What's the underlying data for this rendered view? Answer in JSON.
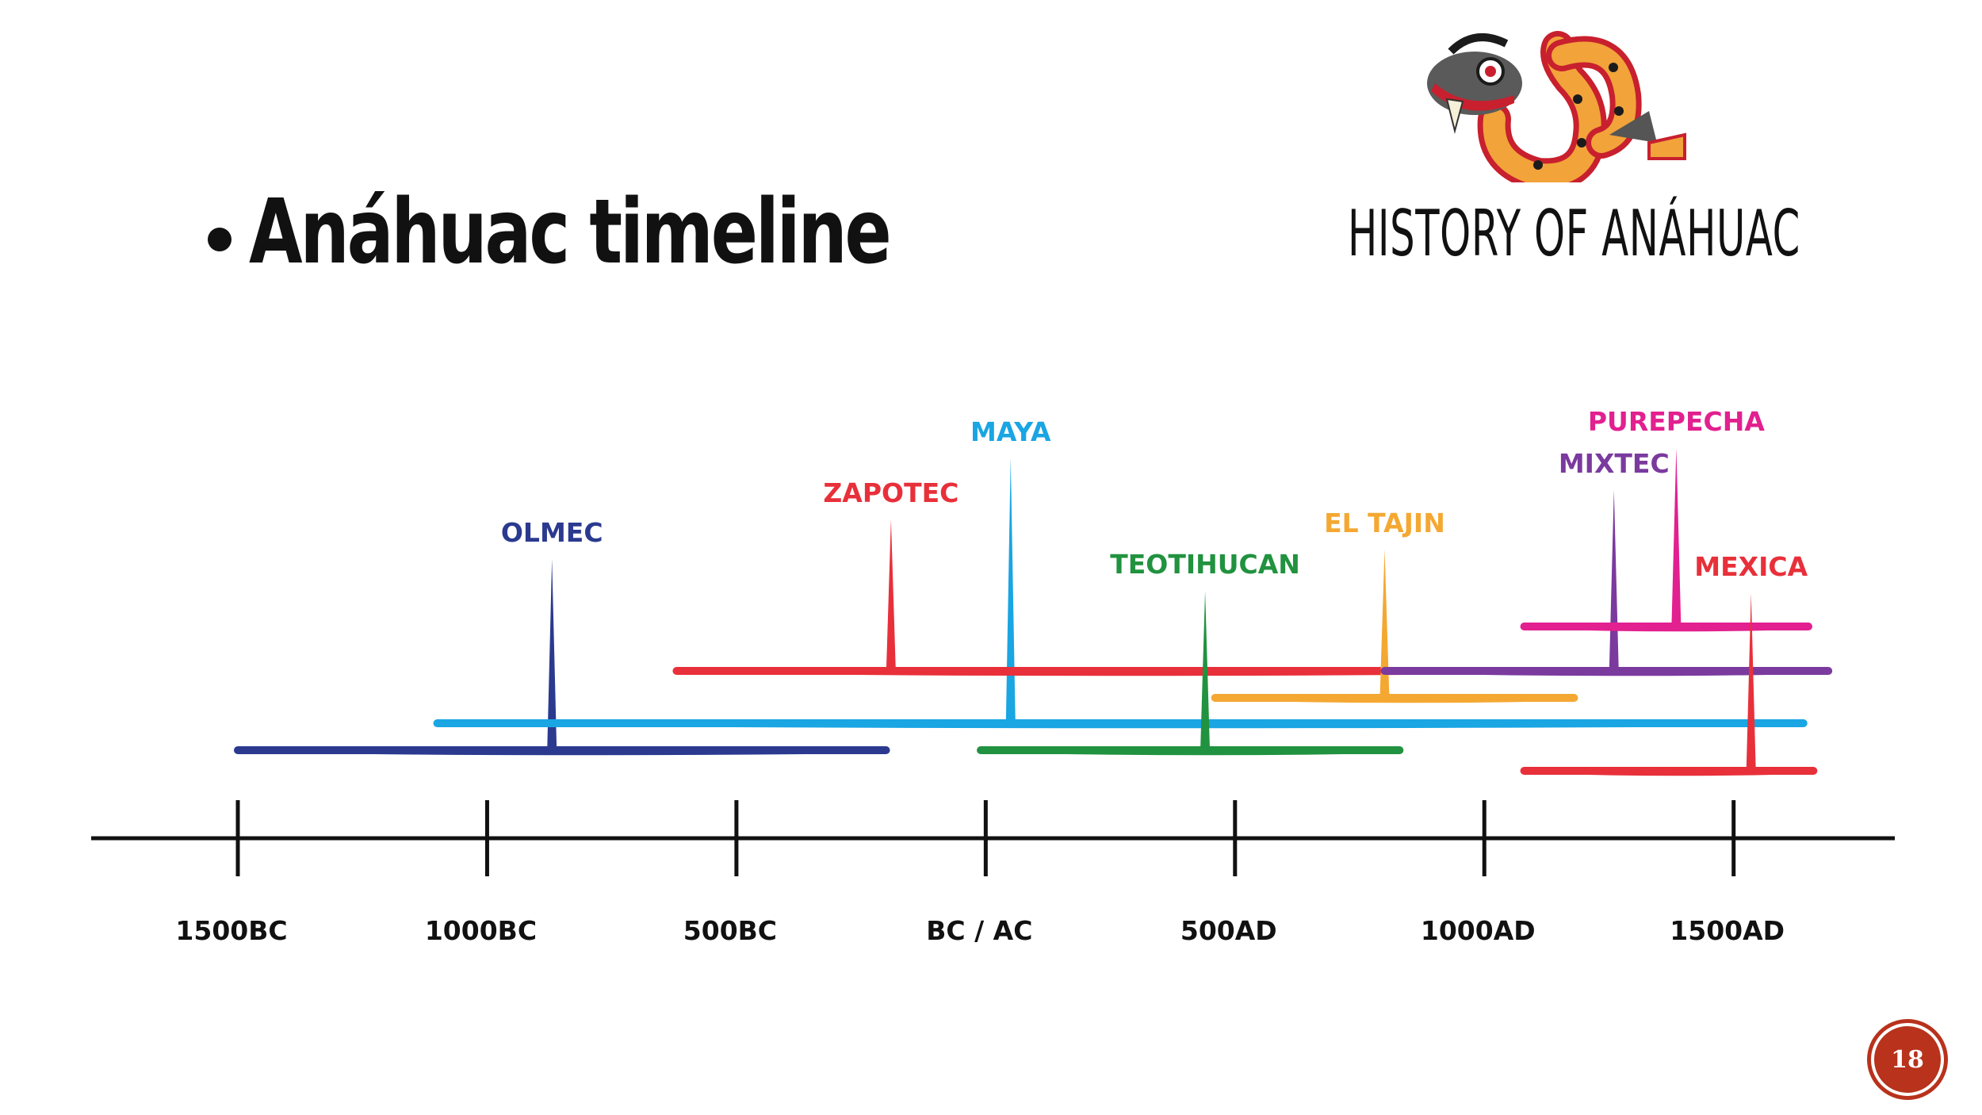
{
  "slide": {
    "title": "Anáhuac timeline",
    "brand_text": "HISTORY OF ANÁHUAC",
    "page_number": "18",
    "logo_icon": "serpent-logo-icon"
  },
  "axis": {
    "range_years": [
      -1700,
      1750
    ],
    "ticks": [
      {
        "year": -1500,
        "label": "1500BC"
      },
      {
        "year": -1000,
        "label": "1000BC"
      },
      {
        "year": -500,
        "label": "500BC"
      },
      {
        "year": 0,
        "label": "BC / AC"
      },
      {
        "year": 500,
        "label": "500AD"
      },
      {
        "year": 1000,
        "label": "1000AD"
      },
      {
        "year": 1500,
        "label": "1500AD"
      }
    ]
  },
  "civilizations": [
    {
      "name": "OLMEC",
      "color": "#2b3a8f",
      "start": -1500,
      "end": -200,
      "peak": -870,
      "level": 1,
      "tier": 5
    },
    {
      "name": "MAYA",
      "color": "#1aa5e3",
      "start": -1100,
      "end": 1640,
      "peak": 50,
      "level": 2,
      "tier": 1
    },
    {
      "name": "ZAPOTEC",
      "color": "#e8303a",
      "start": -620,
      "end": 1050,
      "peak": -190,
      "level": 4,
      "tier": 3
    },
    {
      "name": "TEOTIHUCAN",
      "color": "#21923f",
      "start": -10,
      "end": 830,
      "peak": 440,
      "level": 1,
      "tier": 7
    },
    {
      "name": "EL TAJIN",
      "color": "#f4a832",
      "start": 460,
      "end": 1180,
      "peak": 800,
      "level": 3,
      "tier": 6
    },
    {
      "name": "MIXTEC",
      "color": "#7b3a9e",
      "start": 800,
      "end": 1690,
      "peak": 1260,
      "level": 5,
      "tier": 2
    },
    {
      "name": "PUREPECHA",
      "color": "#e2208f",
      "start": 1080,
      "end": 1650,
      "peak": 1385,
      "level": 6,
      "tier": 0
    },
    {
      "name": "MEXICA",
      "color": "#e8303a",
      "start": 1080,
      "end": 1660,
      "peak": 1535,
      "level": 0,
      "tier": 8
    }
  ]
}
